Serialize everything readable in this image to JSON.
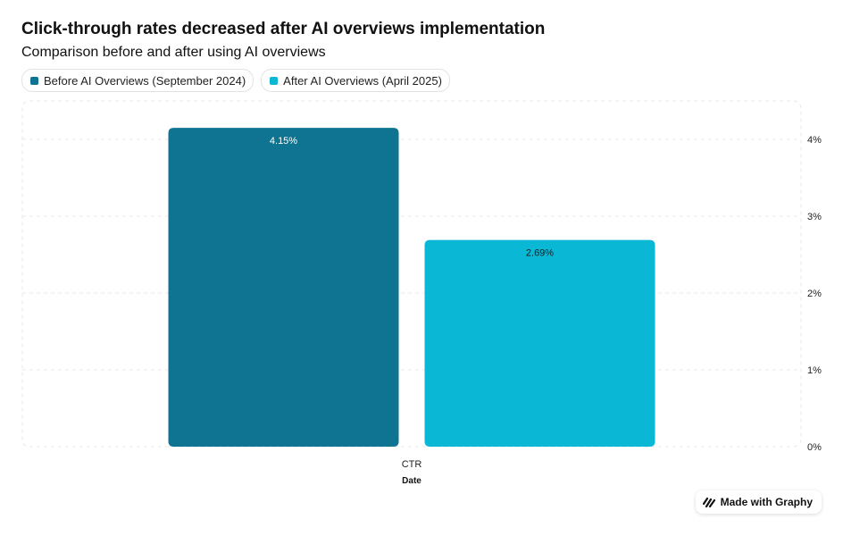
{
  "header": {
    "title": "Click-through rates decreased after AI overviews implementation",
    "subtitle": "Comparison before and after using AI overviews"
  },
  "legend": [
    {
      "label": "Before AI Overviews (September 2024)",
      "color": "#0f7491"
    },
    {
      "label": "After AI Overviews (April 2025)",
      "color": "#0ab8d6"
    }
  ],
  "chart_data": {
    "type": "bar",
    "title": "Click-through rates decreased after AI overviews implementation",
    "subtitle": "Comparison before and after using AI overviews",
    "categories": [
      "CTR"
    ],
    "xlabel": "Date",
    "ylabel": "",
    "ylim": [
      0,
      4.5
    ],
    "yticks": [
      "0%",
      "1%",
      "2%",
      "3%",
      "4%"
    ],
    "y_axis_position": "right",
    "grid": true,
    "legend_position": "top-left",
    "series": [
      {
        "name": "Before AI Overviews (September 2024)",
        "values": [
          4.15
        ],
        "labels": [
          "4.15%"
        ],
        "color": "#0f7491",
        "label_color": "#ffffff"
      },
      {
        "name": "After AI Overviews (April 2025)",
        "values": [
          2.69
        ],
        "labels": [
          "2.69%"
        ],
        "color": "#0ab8d6",
        "label_color": "#1a1a1a"
      }
    ]
  },
  "badge": {
    "label": "Made with Graphy",
    "icon": "graphy-logo-icon"
  }
}
